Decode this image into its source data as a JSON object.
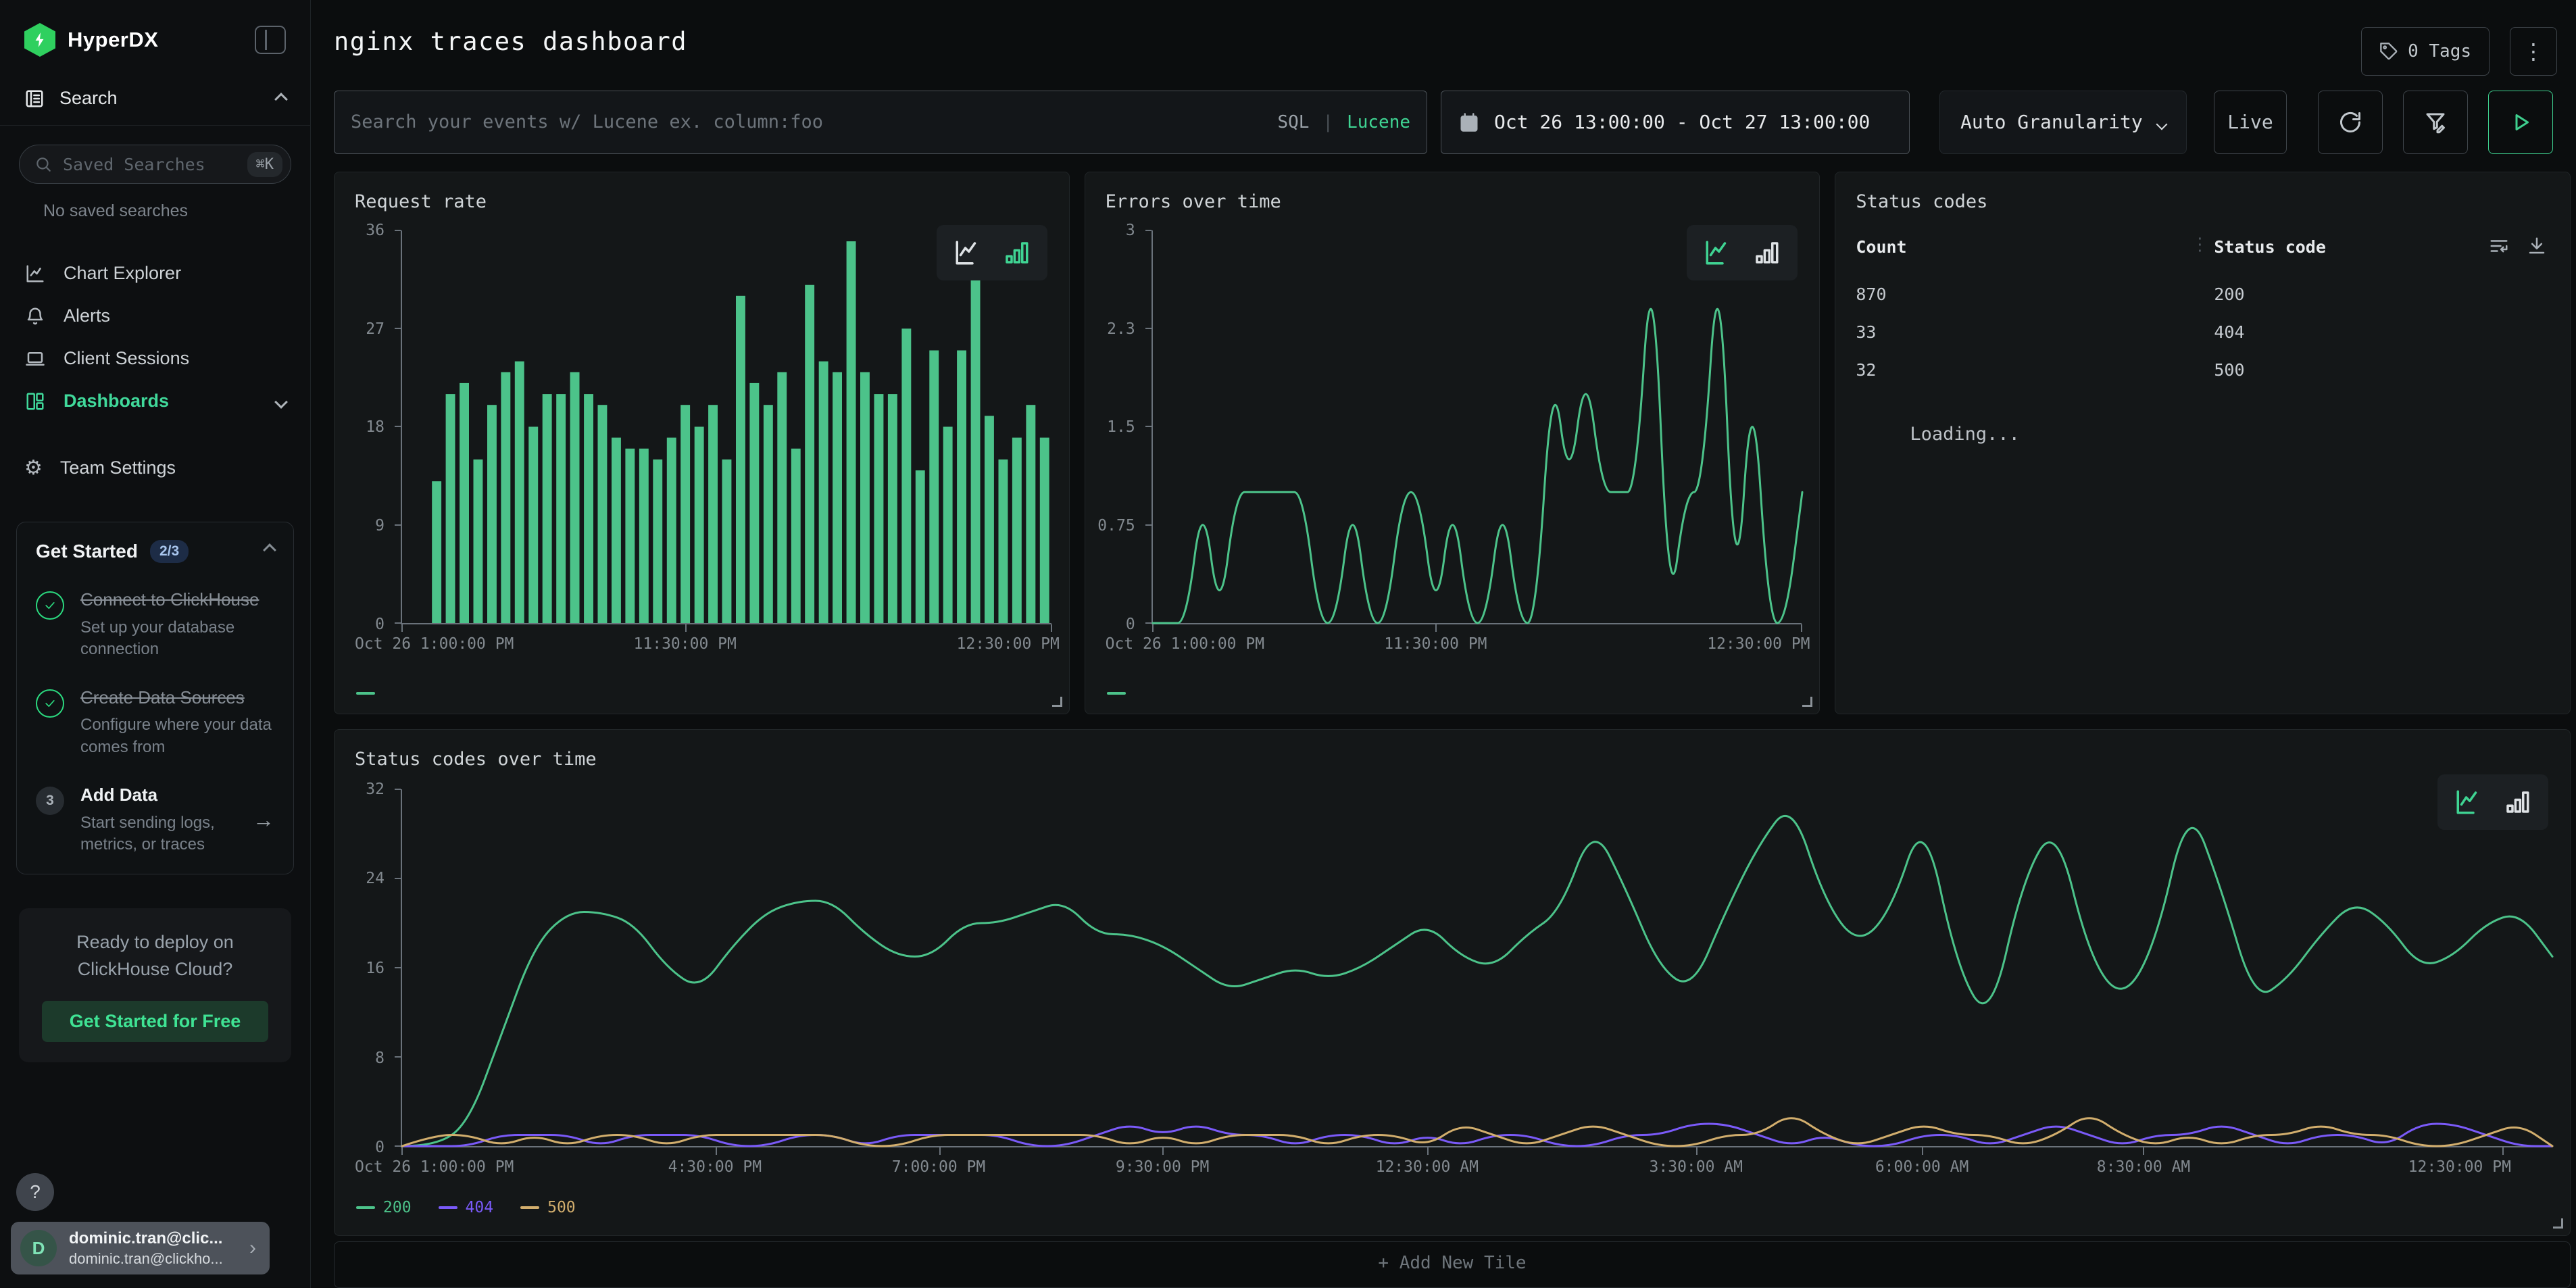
{
  "colors": {
    "accent": "#3fd493",
    "bar_green": "#4cc38a",
    "purple": "#7a5af8",
    "gold": "#d2ae6d",
    "play_green": "#3ecf8e",
    "logo_green": "#2fd05f"
  },
  "icons": {
    "kebab": "⋮",
    "drag_dots": "⋮",
    "help": "?",
    "arrow_right": "→",
    "chevron_right": "›",
    "gear": "⚙"
  },
  "sidebar": {
    "logo": "HyperDX",
    "section": "Search",
    "saved_search": {
      "placeholder": "Saved Searches",
      "shortcut": "⌘K"
    },
    "no_saved": "No saved searches",
    "items": [
      {
        "label": "Chart Explorer"
      },
      {
        "label": "Alerts"
      },
      {
        "label": "Client Sessions"
      },
      {
        "label": "Dashboards",
        "active": true
      },
      {
        "label": "Team Settings"
      }
    ],
    "get_started": {
      "title": "Get Started",
      "badge": "2/3",
      "steps": [
        {
          "title": "Connect to ClickHouse",
          "desc": "Set up your database connection",
          "done": true
        },
        {
          "title": "Create Data Sources",
          "desc": "Configure where your data comes from",
          "done": true
        },
        {
          "step": "3",
          "title": "Add Data",
          "desc": "Start sending logs, metrics, or traces",
          "done": false
        }
      ]
    },
    "promo": {
      "text": "Ready to deploy on ClickHouse Cloud?",
      "cta": "Get Started for Free"
    },
    "user": {
      "initial": "D",
      "name": "dominic.tran@clic...",
      "email": "dominic.tran@clickho..."
    }
  },
  "header": {
    "title": "nginx traces dashboard",
    "tags": "0 Tags",
    "search_placeholder": "Search your events w/ Lucene ex. column:foo",
    "sql": "SQL",
    "lucene": "Lucene",
    "time_range": "Oct 26 13:00:00 - Oct 27 13:00:00",
    "granularity": "Auto Granularity",
    "live": "Live"
  },
  "add_tile": "+ Add New Tile",
  "chart_data": [
    {
      "id": "request_rate",
      "type": "bar",
      "mode": "bar",
      "title": "Request rate",
      "color": "#4cc38a",
      "ylim": [
        0,
        36
      ],
      "yticks": [
        "36",
        "27",
        "18",
        "9",
        "0"
      ],
      "xticks": [
        "Oct 26 1:00:00 PM",
        "11:30:00 PM",
        "12:30:00 PM"
      ],
      "xfracs": [
        0,
        0.437,
        1
      ],
      "values": [
        0,
        0,
        13,
        21,
        22,
        15,
        20,
        23,
        24,
        18,
        21,
        21,
        23,
        21,
        20,
        17,
        16,
        16,
        15,
        17,
        20,
        18,
        20,
        15,
        30,
        22,
        20,
        23,
        16,
        31,
        24,
        23,
        35,
        23,
        21,
        21,
        27,
        14,
        25,
        18,
        25,
        33,
        19,
        15,
        17,
        20,
        17
      ]
    },
    {
      "id": "errors",
      "type": "line",
      "mode": "line",
      "title": "Errors over time",
      "color": "#4cc38a",
      "ylim": [
        0,
        3
      ],
      "yticks": [
        "3",
        "2.3",
        "1.5",
        "0.75",
        "0"
      ],
      "xticks": [
        "Oct 26 1:00:00 PM",
        "11:30:00 PM",
        "12:30:00 PM"
      ],
      "xfracs": [
        0,
        0.437,
        1
      ],
      "values": [
        0,
        0,
        0,
        1,
        0,
        1,
        1,
        1,
        1,
        1,
        0,
        0,
        1,
        0,
        0,
        1,
        1,
        0,
        1,
        0,
        0,
        1,
        0,
        0,
        2,
        1,
        2,
        1,
        1,
        1,
        3,
        0,
        1,
        1,
        3,
        0,
        2,
        0,
        0,
        1
      ]
    },
    {
      "id": "status_codes",
      "type": "table",
      "title": "Status codes",
      "columns": [
        "Count",
        "Status code"
      ],
      "rows": [
        [
          "870",
          "200"
        ],
        [
          "33",
          "404"
        ],
        [
          "32",
          "500"
        ]
      ],
      "loading": "Loading..."
    },
    {
      "id": "status_over_time",
      "type": "line",
      "mode": "line",
      "title": "Status codes over time",
      "ylim": [
        0,
        32
      ],
      "yticks": [
        "32",
        "24",
        "16",
        "8",
        "0"
      ],
      "xticks": [
        "Oct 26 1:00:00 PM",
        "4:30:00 PM",
        "7:00:00 PM",
        "9:30:00 PM",
        "12:30:00 AM",
        "3:30:00 AM",
        "6:00:00 AM",
        "8:30:00 AM",
        "12:30:00 PM"
      ],
      "xfracs": [
        0,
        0.146,
        0.25,
        0.354,
        0.477,
        0.602,
        0.707,
        0.81,
        0.977
      ],
      "series": [
        {
          "name": "200",
          "color": "#4cc38a",
          "values": [
            0,
            0,
            2,
            10,
            18,
            21,
            21,
            20,
            16,
            14,
            18,
            21,
            22,
            22,
            19,
            17,
            17,
            20,
            20,
            21,
            22,
            19,
            19,
            18,
            16,
            14,
            15,
            16,
            15,
            16,
            18,
            20,
            17,
            16,
            19,
            21,
            29,
            23,
            16,
            14,
            21,
            27,
            31,
            22,
            18,
            21,
            30,
            16,
            11,
            24,
            29,
            17,
            13,
            18,
            31,
            23,
            13,
            15,
            19,
            22,
            20,
            16,
            17,
            20,
            21,
            17
          ]
        },
        {
          "name": "404",
          "color": "#7a5af8",
          "values": [
            0,
            0,
            0,
            1,
            1,
            1,
            0,
            1,
            1,
            1,
            0,
            0,
            1,
            1,
            0,
            1,
            1,
            1,
            1,
            0,
            0,
            1,
            2,
            1,
            2,
            1,
            1,
            0,
            1,
            1,
            0,
            1,
            0,
            1,
            1,
            0,
            0,
            1,
            1,
            2,
            2,
            1,
            0,
            1,
            0,
            0,
            1,
            1,
            0,
            1,
            2,
            1,
            0,
            1,
            1,
            2,
            1,
            0,
            1,
            1,
            0,
            2,
            2,
            1,
            0,
            0
          ]
        },
        {
          "name": "500",
          "color": "#d2ae6d",
          "values": [
            0,
            1,
            1,
            0,
            1,
            0,
            1,
            1,
            0,
            1,
            1,
            1,
            1,
            1,
            0,
            0,
            1,
            1,
            1,
            1,
            1,
            1,
            0,
            1,
            0,
            1,
            1,
            1,
            0,
            1,
            1,
            0,
            2,
            1,
            0,
            1,
            2,
            1,
            0,
            0,
            1,
            1,
            3,
            1,
            0,
            1,
            2,
            1,
            1,
            0,
            1,
            3,
            1,
            0,
            1,
            0,
            1,
            1,
            2,
            1,
            1,
            0,
            0,
            1,
            2,
            0
          ]
        }
      ]
    }
  ]
}
